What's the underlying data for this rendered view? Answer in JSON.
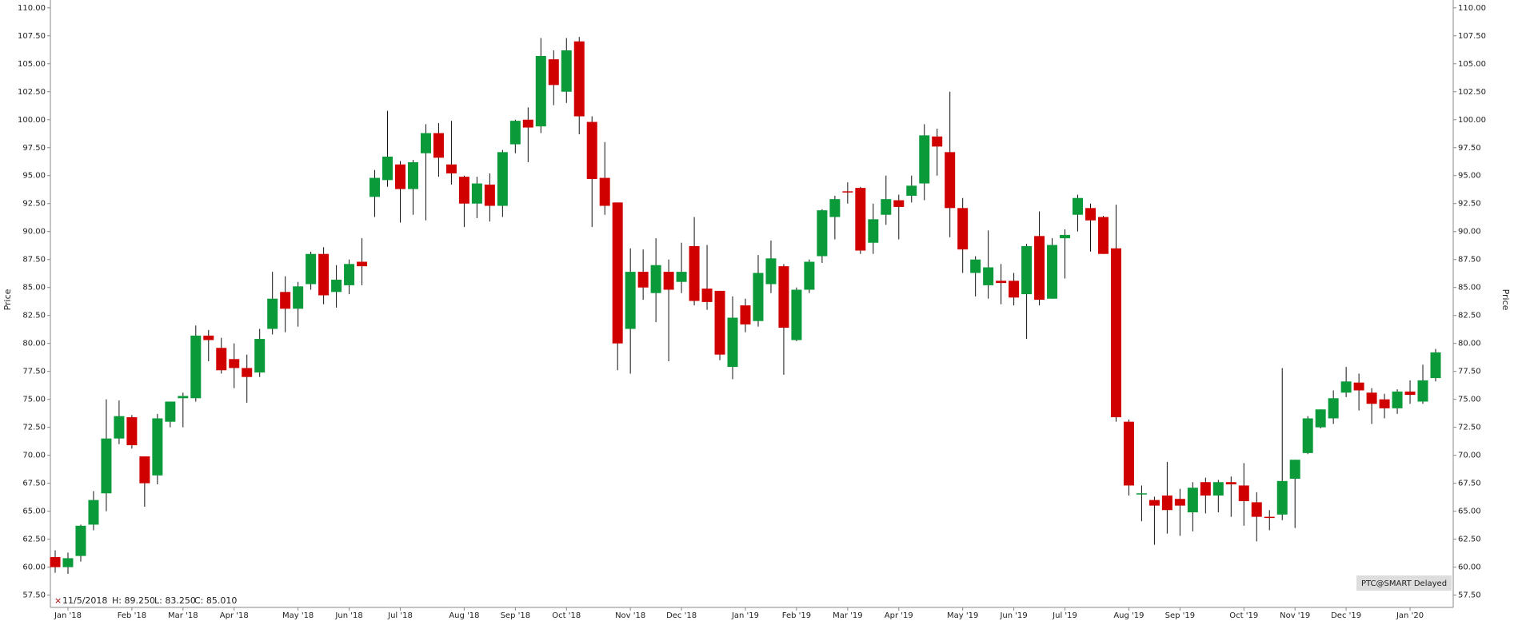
{
  "chart_data": {
    "type": "candlestick",
    "y_label": "Price",
    "up_color": "#0a9a3a",
    "down_color": "#d10000",
    "ylim": [
      56.4,
      110.7
    ],
    "yticks": [
      {
        "value": 57.5,
        "label": "57.50"
      },
      {
        "value": 60,
        "label": "60.00"
      },
      {
        "value": 62.5,
        "label": "62.50"
      },
      {
        "value": 65,
        "label": "65.00"
      },
      {
        "value": 67.5,
        "label": "67.50"
      },
      {
        "value": 70,
        "label": "70.00"
      },
      {
        "value": 72.5,
        "label": "72.50"
      },
      {
        "value": 75,
        "label": "75.00"
      },
      {
        "value": 77.5,
        "label": "77.50"
      },
      {
        "value": 80,
        "label": "80.00"
      },
      {
        "value": 82.5,
        "label": "82.50"
      },
      {
        "value": 85,
        "label": "85.00"
      },
      {
        "value": 87.5,
        "label": "87.50"
      },
      {
        "value": 90,
        "label": "90.00"
      },
      {
        "value": 92.5,
        "label": "92.50"
      },
      {
        "value": 95,
        "label": "95.00"
      },
      {
        "value": 97.5,
        "label": "97.50"
      },
      {
        "value": 100,
        "label": "100.00"
      },
      {
        "value": 102.5,
        "label": "102.50"
      },
      {
        "value": 105,
        "label": "105.00"
      },
      {
        "value": 107.5,
        "label": "107.50"
      },
      {
        "value": 110,
        "label": "110.00"
      }
    ],
    "categories": [
      null,
      "Jan '18",
      null,
      null,
      null,
      null,
      "Feb '18",
      null,
      null,
      null,
      "Mar '18",
      null,
      null,
      null,
      "Apr '18",
      null,
      null,
      null,
      null,
      "May '18",
      null,
      null,
      null,
      "Jun '18",
      null,
      null,
      null,
      "Jul '18",
      null,
      null,
      null,
      null,
      "Aug '18",
      null,
      null,
      null,
      "Sep '18",
      null,
      null,
      null,
      "Oct '18",
      null,
      null,
      null,
      null,
      "Nov '18",
      null,
      null,
      null,
      "Dec '18",
      null,
      null,
      null,
      null,
      "Jan '19",
      null,
      null,
      null,
      "Feb '19",
      null,
      null,
      null,
      "Mar '19",
      null,
      null,
      null,
      "Apr '19",
      null,
      null,
      null,
      null,
      "May '19",
      null,
      null,
      null,
      "Jun '19",
      null,
      null,
      null,
      "Jul '19",
      null,
      null,
      null,
      null,
      "Aug '19",
      null,
      null,
      null,
      "Sep '19",
      null,
      null,
      null,
      null,
      "Oct '19",
      null,
      null,
      null,
      "Nov '19",
      null,
      null,
      null,
      "Dec '19",
      null,
      null,
      null,
      null,
      "Jan '20",
      null,
      null
    ],
    "open": [
      60.9,
      60.0,
      61.0,
      63.8,
      66.6,
      71.5,
      73.4,
      69.9,
      68.2,
      73.0,
      75.1,
      75.1,
      80.7,
      79.6,
      78.6,
      77.8,
      77.4,
      81.3,
      84.6,
      83.1,
      85.3,
      88.0,
      84.6,
      85.2,
      87.3,
      93.1,
      94.6,
      96.0,
      93.8,
      97.0,
      98.8,
      96.0,
      94.9,
      92.5,
      94.2,
      92.3,
      97.8,
      100.0,
      99.4,
      105.4,
      102.5,
      107.0,
      99.8,
      94.8,
      92.6,
      81.3,
      86.4,
      84.5,
      86.4,
      85.5,
      88.7,
      84.9,
      84.7,
      77.9,
      83.4,
      82.0,
      85.3,
      86.9,
      80.3,
      84.8,
      87.8,
      91.3,
      93.6,
      93.9,
      89.0,
      91.5,
      92.8,
      93.2,
      94.3,
      98.5,
      97.1,
      92.1,
      86.3,
      85.2,
      85.6,
      85.6,
      84.4,
      89.6,
      84.0,
      89.4,
      91.5,
      92.1,
      91.3,
      88.5,
      73.0,
      66.5,
      66.0,
      66.4,
      66.1,
      64.9,
      67.6,
      66.4,
      67.6,
      67.3,
      65.8,
      64.5,
      64.7,
      67.9,
      70.2,
      72.5,
      73.3,
      75.6,
      76.5,
      75.6,
      75.0,
      74.2,
      75.7,
      74.8,
      76.9
    ],
    "high": [
      61.5,
      61.3,
      63.8,
      66.8,
      75.0,
      74.9,
      73.6,
      69.9,
      73.7,
      74.8,
      75.6,
      81.6,
      81.2,
      80.5,
      80.0,
      79.0,
      81.3,
      86.4,
      86.0,
      85.5,
      88.2,
      88.6,
      87.0,
      87.5,
      89.4,
      95.5,
      100.8,
      96.3,
      96.4,
      99.6,
      99.7,
      99.9,
      95.0,
      94.9,
      95.2,
      97.3,
      100.0,
      101.1,
      107.3,
      106.2,
      107.3,
      107.4,
      100.3,
      98.0,
      92.6,
      88.5,
      88.4,
      89.4,
      87.5,
      89.0,
      91.3,
      88.8,
      84.7,
      84.2,
      84.0,
      87.9,
      89.2,
      87.1,
      85.0,
      87.5,
      92.0,
      93.2,
      94.4,
      94.0,
      92.5,
      95.0,
      93.3,
      95.0,
      99.6,
      99.2,
      102.5,
      93.0,
      87.8,
      90.1,
      87.1,
      86.3,
      88.9,
      91.8,
      89.4,
      90.2,
      93.3,
      92.5,
      91.4,
      92.4,
      73.2,
      67.3,
      66.3,
      69.4,
      67.0,
      67.6,
      68.0,
      67.8,
      68.1,
      69.3,
      66.7,
      65.1,
      77.8,
      69.6,
      73.5,
      74.1,
      75.8,
      77.9,
      77.3,
      76.0,
      75.5,
      75.9,
      76.7,
      78.1,
      79.5
    ],
    "low": [
      59.5,
      59.4,
      60.5,
      63.3,
      65.0,
      71.0,
      70.6,
      65.4,
      67.4,
      72.5,
      72.5,
      74.8,
      78.4,
      77.3,
      76.0,
      74.7,
      77.0,
      80.8,
      81.0,
      81.5,
      84.8,
      83.5,
      83.2,
      84.4,
      85.2,
      91.3,
      94.0,
      90.8,
      91.5,
      91.0,
      94.9,
      94.2,
      90.4,
      91.2,
      90.9,
      91.3,
      97.0,
      96.2,
      98.8,
      101.3,
      101.5,
      98.7,
      90.4,
      91.5,
      77.6,
      77.3,
      83.9,
      81.9,
      78.4,
      84.5,
      83.4,
      83.0,
      78.5,
      76.8,
      81.0,
      81.5,
      84.5,
      77.2,
      80.2,
      84.5,
      87.2,
      89.3,
      92.5,
      88.0,
      88.0,
      90.6,
      89.3,
      92.6,
      92.8,
      95.0,
      89.5,
      86.3,
      84.2,
      84.0,
      83.5,
      83.4,
      80.4,
      83.4,
      84.0,
      85.8,
      90.0,
      88.2,
      88.0,
      73.0,
      66.4,
      64.1,
      62.0,
      63.0,
      62.8,
      63.2,
      64.8,
      64.9,
      64.5,
      63.7,
      62.3,
      63.3,
      64.2,
      63.5,
      70.1,
      72.4,
      72.8,
      75.2,
      74.0,
      72.8,
      73.3,
      73.7,
      74.6,
      74.6,
      76.6
    ],
    "close": [
      60.0,
      60.8,
      63.7,
      66.0,
      71.5,
      73.5,
      70.9,
      67.5,
      73.3,
      74.8,
      75.3,
      80.7,
      80.3,
      77.6,
      77.8,
      77.0,
      80.4,
      84.0,
      83.1,
      85.1,
      88.0,
      84.3,
      85.7,
      87.1,
      86.9,
      94.8,
      96.7,
      93.8,
      96.2,
      98.8,
      96.6,
      95.2,
      92.5,
      94.3,
      92.3,
      97.1,
      99.9,
      99.3,
      105.7,
      103.1,
      106.2,
      100.3,
      94.7,
      92.3,
      80.0,
      86.4,
      85.0,
      87.0,
      84.8,
      86.4,
      83.8,
      83.7,
      79.0,
      82.3,
      81.7,
      86.3,
      87.6,
      81.4,
      84.8,
      87.3,
      91.9,
      92.9,
      93.5,
      88.3,
      91.1,
      92.9,
      92.2,
      94.1,
      98.6,
      97.6,
      92.1,
      88.4,
      87.5,
      86.8,
      85.4,
      84.1,
      88.7,
      83.9,
      88.8,
      89.7,
      93.0,
      91.0,
      88.0,
      73.4,
      67.3,
      66.6,
      65.5,
      65.1,
      65.5,
      67.1,
      66.4,
      67.6,
      67.4,
      65.9,
      64.5,
      64.4,
      67.7,
      69.6,
      73.3,
      74.1,
      75.1,
      76.6,
      75.8,
      74.6,
      74.2,
      75.7,
      75.4,
      76.7,
      79.2
    ]
  },
  "info": {
    "date": "11/5/2018",
    "high": "H: 89.250",
    "low": "L: 83.250",
    "close": "C: 85.010",
    "source": "PTC@SMART Delayed"
  }
}
